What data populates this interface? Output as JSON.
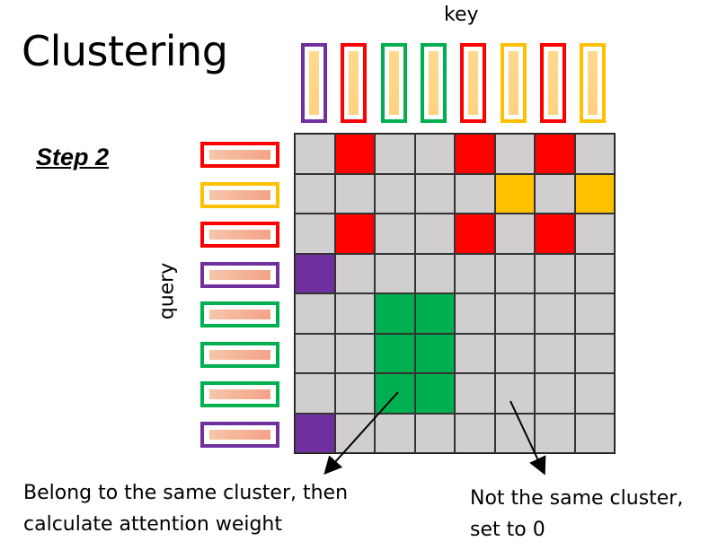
{
  "title": "Clustering",
  "step": "Step 2",
  "key_label": "key",
  "query_label": "query",
  "colors": {
    "purple": "#7030a0",
    "red": "#ff0000",
    "green": "#00b050",
    "yellow": "#ffc000",
    "gray": "#d0cece"
  },
  "keys": [
    "purple",
    "red",
    "green",
    "green",
    "red",
    "yellow",
    "red",
    "yellow"
  ],
  "queries": [
    "red",
    "yellow",
    "red",
    "purple",
    "green",
    "green",
    "green",
    "purple"
  ],
  "matrix": [
    [
      "gray",
      "red",
      "gray",
      "gray",
      "red",
      "gray",
      "red",
      "gray"
    ],
    [
      "gray",
      "gray",
      "gray",
      "gray",
      "gray",
      "yellow",
      "gray",
      "yellow"
    ],
    [
      "gray",
      "red",
      "gray",
      "gray",
      "red",
      "gray",
      "red",
      "gray"
    ],
    [
      "purple",
      "gray",
      "gray",
      "gray",
      "gray",
      "gray",
      "gray",
      "gray"
    ],
    [
      "gray",
      "gray",
      "green",
      "green",
      "gray",
      "gray",
      "gray",
      "gray"
    ],
    [
      "gray",
      "gray",
      "green",
      "green",
      "gray",
      "gray",
      "gray",
      "gray"
    ],
    [
      "gray",
      "gray",
      "green",
      "green",
      "gray",
      "gray",
      "gray",
      "gray"
    ],
    [
      "purple",
      "gray",
      "gray",
      "gray",
      "gray",
      "gray",
      "gray",
      "gray"
    ]
  ],
  "annotations": {
    "same_line1": "Belong to the same cluster, then",
    "same_line2": "calculate attention weight",
    "diff_line1": "Not the same cluster,",
    "diff_line2": "set to 0"
  }
}
